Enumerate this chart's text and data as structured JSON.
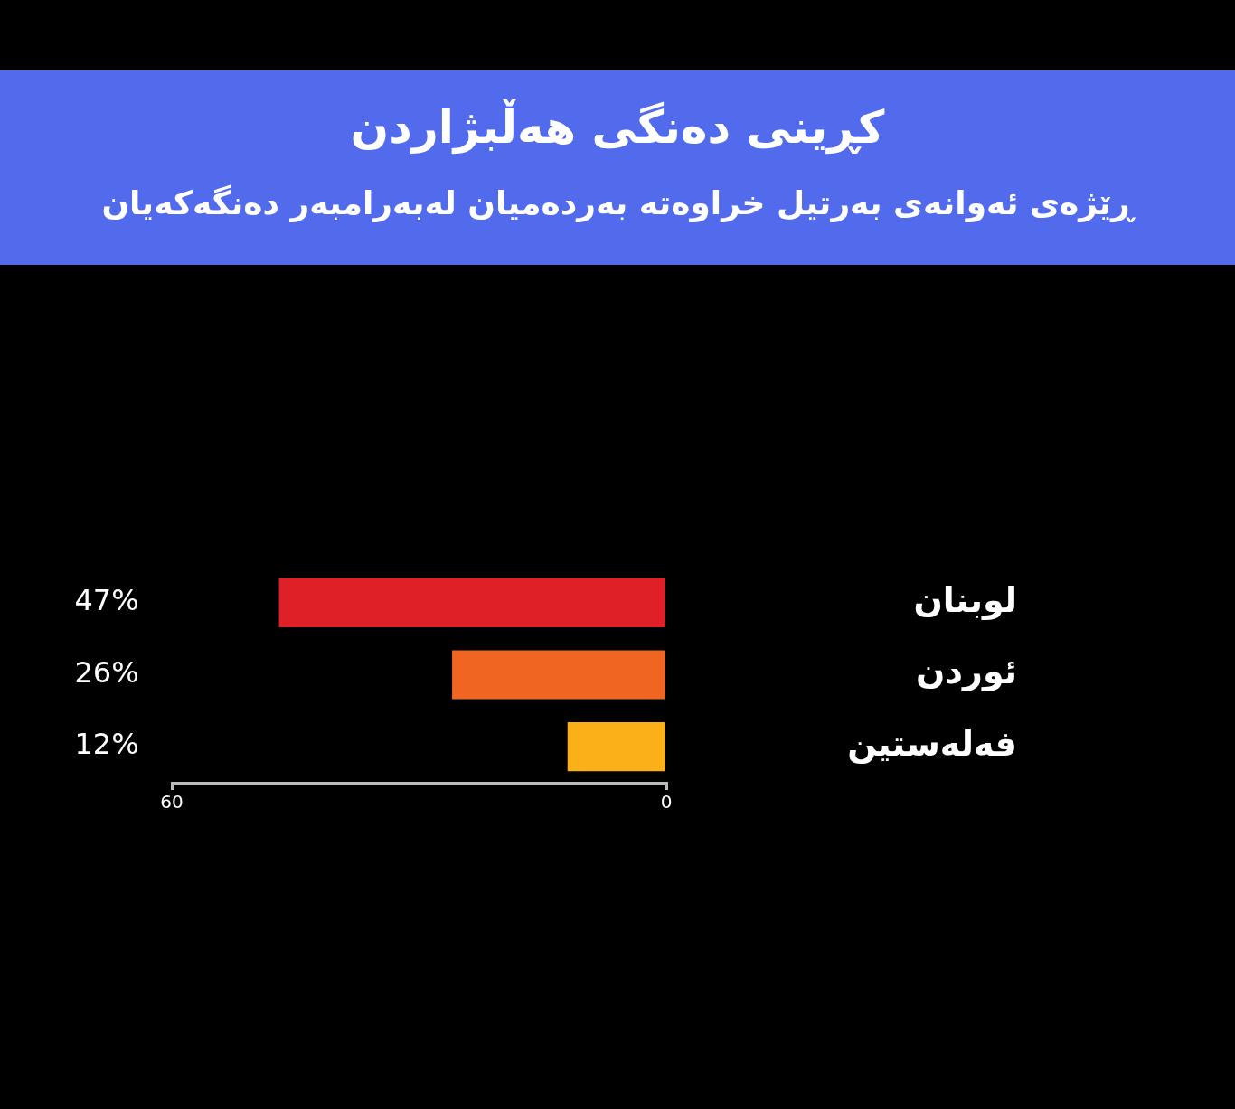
{
  "chart_data": {
    "type": "bar",
    "orientation": "horizontal",
    "title": "کڕینی دەنگی هەڵبژاردن",
    "subtitle": "ڕێژەی ئەوانەی بەرتیل خراوەتە بەردەمیان لەبەرامبەر دەنگەکەیان",
    "categories": [
      "لوبنان",
      "ئوردن",
      "فەلەستین"
    ],
    "values": [
      47,
      26,
      12
    ],
    "colors": [
      "#e02027",
      "#f06522",
      "#fbb01a"
    ],
    "value_labels": [
      "47%",
      "26%",
      "12%"
    ],
    "xlim": [
      60,
      0
    ],
    "xticks": [
      60,
      0
    ],
    "grid": false,
    "legend": false
  }
}
